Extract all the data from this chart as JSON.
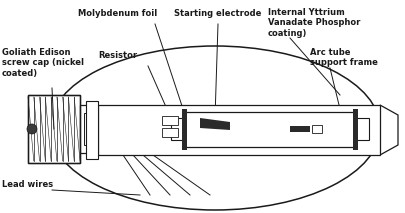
{
  "bg_color": "#ffffff",
  "line_color": "#1a1a1a",
  "labels": {
    "internal_yttrium": "Internal Yttrium\nVanadate Phosphor\ncoating)",
    "molybdenum_foil": "Molybdenum foil",
    "starting_electrode": "Starting electrode",
    "goliath_edison": "Goliath Edison\nscrew cap (nickel\ncoated)",
    "resistor": "Resistor",
    "arc_tube": "Arc tube\nsupport frame",
    "lead_wires": "Lead wires"
  },
  "font_size": 6.0
}
